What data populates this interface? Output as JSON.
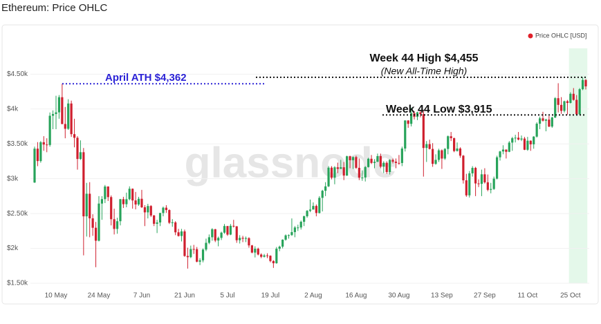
{
  "chart_data": {
    "type": "candlestick",
    "title": "Ethereum: Price OHLC",
    "legend": "Price OHLC [USD]",
    "legend_color": "#e0202a",
    "watermark": "glassnode",
    "up_color": "#27a35a",
    "down_color": "#cf1f2e",
    "grid": true,
    "ylim": [
      1500,
      4870
    ],
    "yticks": [
      {
        "value": 1500,
        "label": "$1.50k"
      },
      {
        "value": 2000,
        "label": "$2k"
      },
      {
        "value": 2500,
        "label": "$2.50k"
      },
      {
        "value": 3000,
        "label": "$3k"
      },
      {
        "value": 3500,
        "label": "$3.50k"
      },
      {
        "value": 4000,
        "label": "$4k"
      },
      {
        "value": 4500,
        "label": "$4.50k"
      }
    ],
    "categories": [
      null,
      null,
      null,
      null,
      null,
      null,
      null,
      "10 May",
      null,
      null,
      null,
      null,
      null,
      null,
      null,
      null,
      null,
      null,
      null,
      null,
      null,
      "24 May",
      null,
      null,
      null,
      null,
      null,
      null,
      null,
      null,
      null,
      null,
      null,
      null,
      null,
      "7 Jun",
      null,
      null,
      null,
      null,
      null,
      null,
      null,
      null,
      null,
      null,
      null,
      null,
      null,
      "21 Jun",
      null,
      null,
      null,
      null,
      null,
      null,
      null,
      null,
      null,
      null,
      null,
      null,
      null,
      "5 Jul",
      null,
      null,
      null,
      null,
      null,
      null,
      null,
      null,
      null,
      null,
      null,
      null,
      null,
      "19 Jul",
      null,
      null,
      null,
      null,
      null,
      null,
      null,
      null,
      null,
      null,
      null,
      null,
      null,
      "2 Aug",
      null,
      null,
      null,
      null,
      null,
      null,
      null,
      null,
      null,
      null,
      null,
      null,
      null,
      "16 Aug",
      null,
      null,
      null,
      null,
      null,
      null,
      null,
      null,
      null,
      null,
      null,
      null,
      null,
      "30 Aug",
      null,
      null,
      null,
      null,
      null,
      null,
      null,
      null,
      null,
      null,
      null,
      null,
      null,
      "13 Sep",
      null,
      null,
      null,
      null,
      null,
      null,
      null,
      null,
      null,
      null,
      null,
      null,
      null,
      "27 Sep",
      null,
      null,
      null,
      null,
      null,
      null,
      null,
      null,
      null,
      null,
      null,
      null,
      null,
      "11 Oct",
      null,
      null,
      null,
      null,
      null,
      null,
      null,
      null,
      null,
      null,
      null,
      null,
      null,
      "25 Oct",
      null,
      null,
      null,
      null,
      null
    ],
    "open": [
      2945,
      3431,
      3253,
      3523,
      3490,
      3484,
      3903,
      3928,
      3952,
      4169,
      3785,
      3716,
      4079,
      3639,
      3587,
      3283,
      3380,
      2460,
      2784,
      2431,
      2296,
      2110,
      2643,
      2707,
      2888,
      2736,
      2419,
      2279,
      2390,
      2706,
      2634,
      2706,
      2856,
      2688,
      2630,
      2712,
      2590,
      2517,
      2608,
      2472,
      2353,
      2372,
      2508,
      2584,
      2550,
      2368,
      2373,
      2231,
      2178,
      2244,
      1891,
      1874,
      1990,
      1989,
      1809,
      1829,
      1983,
      2080,
      2160,
      2275,
      2113,
      2151,
      2226,
      2321,
      2198,
      2324,
      2317,
      2117,
      2151,
      2139,
      2147,
      2043,
      1940,
      1995,
      1912,
      1880,
      1899,
      1895,
      1819,
      1787,
      1995,
      2025,
      2125,
      2187,
      2191,
      2234,
      2300,
      2300,
      2382,
      2461,
      2539,
      2557,
      2609,
      2508,
      2725,
      2827,
      2890,
      3158,
      3014,
      3163,
      3141,
      3164,
      3045,
      3322,
      3265,
      3310,
      3156,
      3014,
      3017,
      3167,
      3286,
      3226,
      3242,
      3324,
      3173,
      3228,
      3096,
      3269,
      3245,
      3226,
      3225,
      3433,
      3835,
      3787,
      3941,
      3887,
      3952,
      3927,
      3441,
      3496,
      3427,
      3213,
      3270,
      3407,
      3289,
      3427,
      3609,
      3581,
      3397,
      3433,
      3330,
      2977,
      2761,
      3077,
      3155,
      2932,
      2926,
      3063,
      2948,
      2840,
      2852,
      3001,
      3307,
      3391,
      3418,
      3386,
      3518,
      3581,
      3588,
      3562,
      3576,
      3415,
      3545,
      3493,
      3604,
      3789,
      3866,
      3832,
      3848,
      3748,
      3878,
      4155,
      4059,
      3973,
      4111,
      4087,
      4218,
      4131,
      3924,
      4284,
      4416
    ],
    "high": [
      3460,
      3525,
      3540,
      3610,
      3580,
      3950,
      3980,
      4190,
      4200,
      4362,
      4030,
      4140,
      4120,
      3860,
      3610,
      3550,
      3440,
      2940,
      2950,
      2490,
      2380,
      2750,
      2750,
      2910,
      2890,
      2760,
      2570,
      2440,
      2710,
      2740,
      2800,
      2890,
      2860,
      2810,
      2740,
      2840,
      2620,
      2640,
      2620,
      2480,
      2410,
      2510,
      2600,
      2620,
      2560,
      2420,
      2390,
      2280,
      2280,
      2270,
      2010,
      2040,
      2050,
      2020,
      1860,
      2000,
      2140,
      2200,
      2290,
      2280,
      2170,
      2240,
      2350,
      2320,
      2350,
      2410,
      2320,
      2190,
      2180,
      2170,
      2160,
      2050,
      2030,
      2010,
      1930,
      1920,
      1930,
      1900,
      1830,
      2020,
      2040,
      2130,
      2200,
      2200,
      2430,
      2320,
      2340,
      2400,
      2470,
      2550,
      2700,
      2660,
      2630,
      2750,
      2840,
      2950,
      3180,
      3180,
      3180,
      3230,
      3270,
      3240,
      3330,
      3330,
      3320,
      3330,
      3290,
      3120,
      3180,
      3300,
      3340,
      3280,
      3360,
      3360,
      3250,
      3250,
      3280,
      3290,
      3290,
      3340,
      3460,
      3840,
      3840,
      4020,
      3970,
      3960,
      3980,
      3970,
      3540,
      3560,
      3510,
      3350,
      3430,
      3420,
      3440,
      3620,
      3670,
      3590,
      3520,
      3450,
      3340,
      3070,
      3110,
      3180,
      3170,
      2990,
      3130,
      3150,
      3060,
      2940,
      3030,
      3330,
      3400,
      3480,
      3420,
      3540,
      3600,
      3630,
      3670,
      3620,
      3600,
      3600,
      3550,
      3610,
      3810,
      3890,
      3960,
      3860,
      3900,
      3890,
      4170,
      4370,
      4170,
      4120,
      4130,
      4240,
      4300,
      4200,
      4300,
      4455,
      4430
    ],
    "low": [
      2940,
      3180,
      3230,
      3400,
      3380,
      3460,
      3710,
      3710,
      3860,
      3780,
      3580,
      3700,
      3600,
      3450,
      3130,
      3270,
      1900,
      2170,
      2160,
      2180,
      1730,
      2100,
      2410,
      2650,
      2680,
      2330,
      2200,
      2210,
      2330,
      2580,
      2590,
      2690,
      2570,
      2560,
      2610,
      2580,
      2320,
      2430,
      2450,
      2320,
      2220,
      2320,
      2460,
      2510,
      2350,
      2310,
      2190,
      2170,
      2100,
      1880,
      1710,
      1860,
      1920,
      1800,
      1760,
      1800,
      1960,
      2060,
      2110,
      2090,
      2030,
      2120,
      2210,
      2180,
      2190,
      2300,
      2080,
      2070,
      2090,
      2090,
      2010,
      1930,
      1870,
      1900,
      1860,
      1870,
      1860,
      1800,
      1720,
      1780,
      1960,
      2000,
      2110,
      2140,
      2180,
      2160,
      2250,
      2270,
      2320,
      2440,
      2520,
      2560,
      2460,
      2500,
      2530,
      2750,
      2880,
      2990,
      2920,
      3080,
      3140,
      2980,
      3040,
      3150,
      3140,
      3140,
      2980,
      2970,
      2960,
      3160,
      3210,
      3150,
      3240,
      3150,
      3080,
      3070,
      3060,
      3220,
      3150,
      3200,
      3180,
      3390,
      3730,
      3750,
      3850,
      3840,
      3880,
      3030,
      3240,
      3420,
      3170,
      3200,
      3240,
      3140,
      3270,
      3350,
      3540,
      3380,
      3390,
      3300,
      2930,
      2740,
      2730,
      3030,
      2750,
      2880,
      2750,
      2930,
      2820,
      2790,
      2840,
      2990,
      3260,
      3350,
      3290,
      3380,
      3400,
      3520,
      3550,
      3540,
      3410,
      3400,
      3400,
      3430,
      3590,
      3710,
      3820,
      3680,
      3740,
      3730,
      3870,
      3950,
      3930,
      3950,
      3920,
      4080,
      4120,
      3915,
      3920,
      4270,
      4280
    ],
    "close": [
      3431,
      3253,
      3523,
      3490,
      3484,
      3903,
      3928,
      3952,
      4169,
      3785,
      3716,
      4079,
      3639,
      3587,
      3283,
      3380,
      2460,
      2784,
      2431,
      2296,
      2110,
      2643,
      2707,
      2888,
      2736,
      2419,
      2279,
      2390,
      2706,
      2634,
      2706,
      2856,
      2688,
      2630,
      2712,
      2590,
      2517,
      2608,
      2472,
      2353,
      2372,
      2508,
      2584,
      2550,
      2368,
      2373,
      2231,
      2178,
      2244,
      1891,
      1874,
      1990,
      1989,
      1809,
      1829,
      1983,
      2080,
      2160,
      2275,
      2113,
      2151,
      2226,
      2321,
      2198,
      2324,
      2317,
      2117,
      2151,
      2139,
      2147,
      2043,
      1940,
      1995,
      1912,
      1880,
      1899,
      1895,
      1819,
      1787,
      1995,
      2025,
      2125,
      2187,
      2191,
      2234,
      2300,
      2300,
      2382,
      2461,
      2539,
      2557,
      2609,
      2508,
      2725,
      2827,
      2890,
      3158,
      3014,
      3163,
      3141,
      3164,
      3045,
      3322,
      3265,
      3310,
      3156,
      3014,
      3017,
      3167,
      3286,
      3226,
      3242,
      3324,
      3173,
      3228,
      3096,
      3269,
      3245,
      3226,
      3225,
      3433,
      3835,
      3787,
      3941,
      3887,
      3952,
      3927,
      3441,
      3496,
      3427,
      3213,
      3270,
      3407,
      3289,
      3427,
      3609,
      3581,
      3397,
      3433,
      3330,
      2977,
      2761,
      3077,
      3155,
      2932,
      2926,
      3063,
      2948,
      2840,
      2852,
      3001,
      3307,
      3391,
      3418,
      3386,
      3518,
      3581,
      3588,
      3562,
      3576,
      3415,
      3545,
      3493,
      3604,
      3789,
      3866,
      3832,
      3848,
      3748,
      3878,
      4155,
      4059,
      3973,
      4111,
      4087,
      4218,
      4131,
      3924,
      4284,
      4416,
      4325
    ],
    "annotations": [
      {
        "text": "April ATH $4,362",
        "value": 4362,
        "color": "#2b22d6"
      },
      {
        "text": "Week 44 High $4,455",
        "subtext": "(New All-Time High)",
        "value": 4455,
        "color": "#111111"
      },
      {
        "text": "Week 44 Low $3,915",
        "value": 3915,
        "color": "#111111"
      }
    ]
  }
}
